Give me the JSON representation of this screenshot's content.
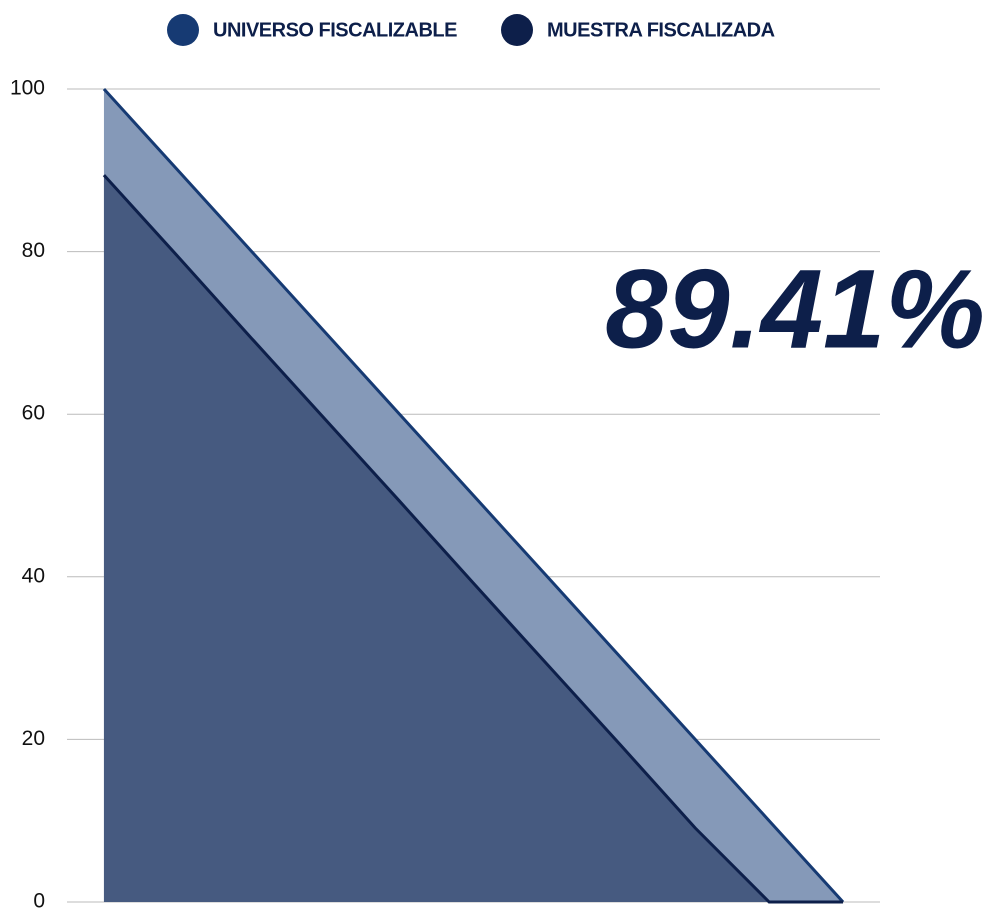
{
  "chart_data": {
    "type": "area",
    "annotation": "89.41%",
    "categories": [
      null,
      null,
      null,
      null,
      null,
      null,
      null,
      null,
      null,
      null,
      null
    ],
    "series": [
      {
        "name": "UNIVERSO FISCALIZABLE",
        "color": "#163a73",
        "fill": "#8599b8",
        "values": [
          100,
          90,
          80,
          70,
          60,
          50,
          40,
          30,
          20,
          10,
          0
        ]
      },
      {
        "name": "MUESTRA FISCALIZADA",
        "color": "#0d1f4a",
        "fill": "#465a80",
        "values": [
          89.41,
          79.4,
          69.3,
          59.3,
          49.3,
          39.2,
          29.2,
          19.2,
          9.1,
          0,
          0
        ]
      }
    ],
    "ylim": [
      0,
      100
    ],
    "yticks": [
      0,
      20,
      40,
      60,
      80,
      100
    ],
    "grid": true,
    "legend": "top"
  }
}
